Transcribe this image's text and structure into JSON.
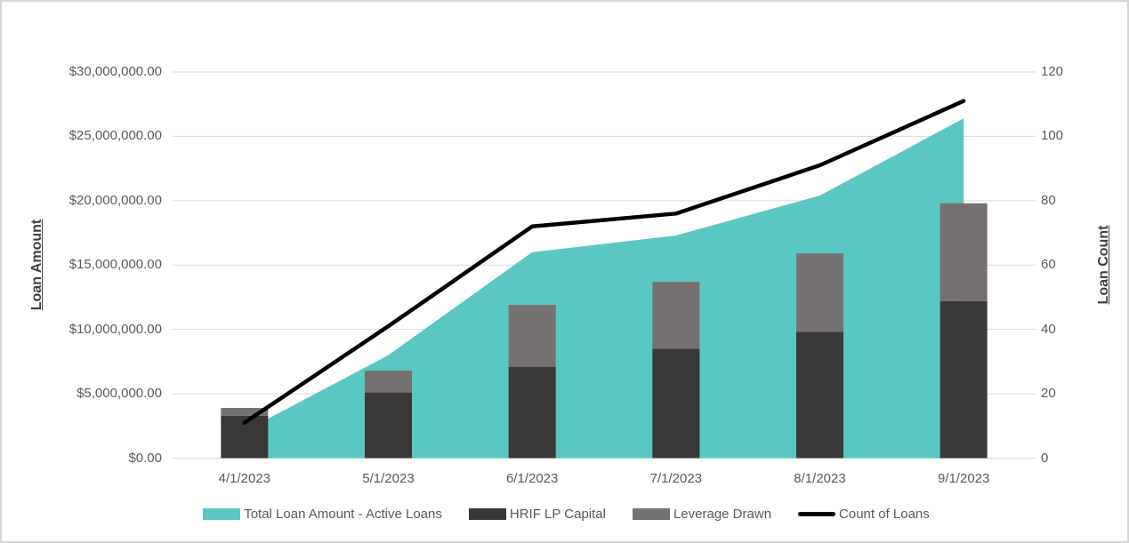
{
  "chart_data": {
    "type": "combo",
    "categories": [
      "4/1/2023",
      "5/1/2023",
      "6/1/2023",
      "7/1/2023",
      "8/1/2023",
      "9/1/2023"
    ],
    "series": [
      {
        "name": "Total Loan Amount - Active Loans",
        "type": "area",
        "axis": "left",
        "color": "#5bc7c3",
        "values": [
          2100000,
          8000000,
          16000000,
          17300000,
          20400000,
          26400000
        ]
      },
      {
        "name": "HRIF LP Capital",
        "type": "bar",
        "axis": "left",
        "color": "#3b3838",
        "values": [
          3300000,
          5100000,
          7100000,
          8500000,
          9800000,
          12200000
        ]
      },
      {
        "name": "Leverage Drawn",
        "type": "bar-stacked-on-previous",
        "axis": "left",
        "color": "#767171",
        "values": [
          600000,
          1700000,
          4800000,
          5200000,
          6100000,
          7600000
        ]
      },
      {
        "name": "Count of Loans",
        "type": "line",
        "axis": "right",
        "color": "#000000",
        "values": [
          11,
          41,
          72,
          76,
          91,
          111
        ]
      }
    ],
    "left_axis": {
      "title": "Loan Amount",
      "min": 0,
      "max": 30000000,
      "tick_step": 5000000,
      "tick_labels": [
        "$0.00",
        "$5,000,000.00",
        "$10,000,000.00",
        "$15,000,000.00",
        "$20,000,000.00",
        "$25,000,000.00",
        "$30,000,000.00"
      ]
    },
    "right_axis": {
      "title": "Loan Count",
      "min": 0,
      "max": 120,
      "tick_step": 20,
      "tick_labels": [
        "0",
        "20",
        "40",
        "60",
        "80",
        "100",
        "120"
      ]
    },
    "legend_position": "bottom",
    "grid": true,
    "gridline_color": "#d9d9d9"
  }
}
